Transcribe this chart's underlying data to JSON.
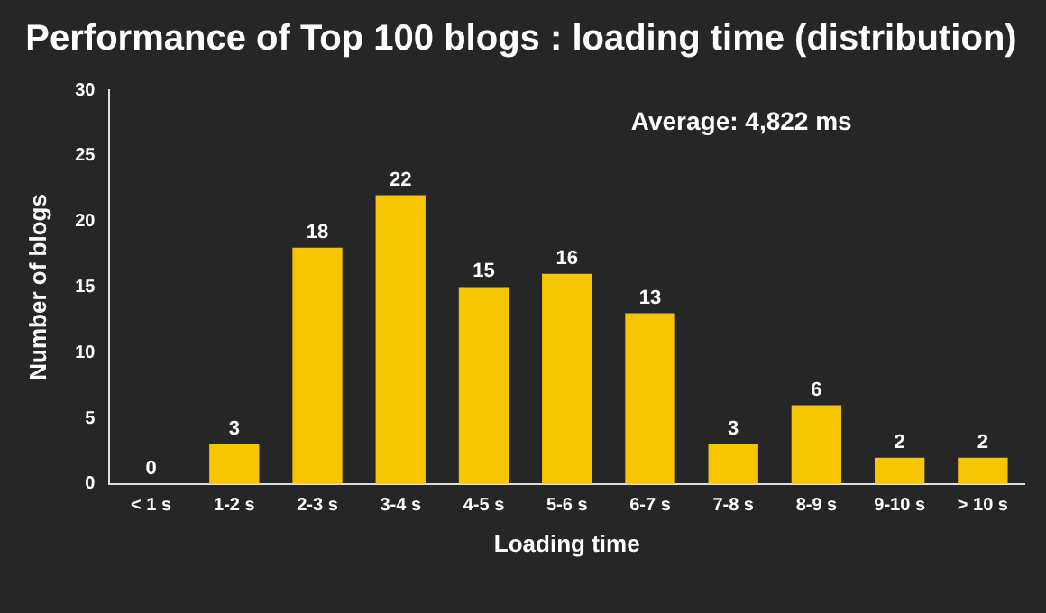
{
  "chart_data": {
    "type": "bar",
    "title": "Performance of Top 100 blogs : loading time (distribution)",
    "xlabel": "Loading time",
    "ylabel": "Number of blogs",
    "categories": [
      "< 1 s",
      "1-2 s",
      "2-3 s",
      "3-4 s",
      "4-5 s",
      "5-6 s",
      "6-7 s",
      "7-8 s",
      "8-9 s",
      "9-10 s",
      "> 10 s"
    ],
    "values": [
      0,
      3,
      18,
      22,
      15,
      16,
      13,
      3,
      6,
      2,
      2
    ],
    "color": "#f7c400",
    "ylim": [
      0,
      30
    ],
    "yticks": [
      0,
      5,
      10,
      15,
      20,
      25,
      30
    ],
    "grid": false,
    "legend": false,
    "data_labels": true,
    "annotations": [
      "Average: 4,822 ms"
    ]
  }
}
